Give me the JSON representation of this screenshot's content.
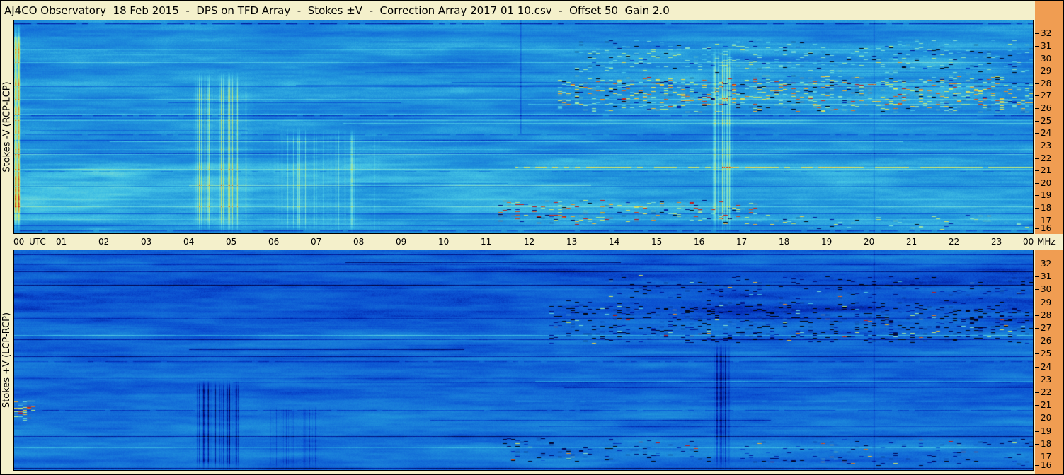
{
  "header": {
    "title": "AJ4CO Observatory  18 Feb 2015  -  DPS on TFD Array  -  Stokes ±V  -  Correction Array 2017 01 10.csv  -  Offset 50  Gain 2.0"
  },
  "colors": {
    "page_bg": "#f4f0cb",
    "strip_bg": "#f09d52",
    "text": "#000000",
    "panel_border": "#000000"
  },
  "palette": [
    {
      "t": 0.0,
      "c": "#000008"
    },
    {
      "t": 0.06,
      "c": "#00004a"
    },
    {
      "t": 0.15,
      "c": "#0018a0"
    },
    {
      "t": 0.24,
      "c": "#0a4ed0"
    },
    {
      "t": 0.32,
      "c": "#1470d8"
    },
    {
      "t": 0.42,
      "c": "#2196dc"
    },
    {
      "t": 0.52,
      "c": "#44c3e4"
    },
    {
      "t": 0.62,
      "c": "#7fdfd4"
    },
    {
      "t": 0.72,
      "c": "#b4ed86"
    },
    {
      "t": 0.82,
      "c": "#eee34e"
    },
    {
      "t": 0.9,
      "c": "#ec8a1e"
    },
    {
      "t": 1.0,
      "c": "#c41414"
    }
  ],
  "time_axis": {
    "unit_left": "UTC",
    "unit_right": "MHz",
    "hours": [
      "00",
      "01",
      "02",
      "03",
      "04",
      "05",
      "06",
      "07",
      "08",
      "09",
      "10",
      "11",
      "12",
      "13",
      "14",
      "15",
      "16",
      "17",
      "18",
      "19",
      "20",
      "21",
      "22",
      "23",
      "00"
    ]
  },
  "freq_axis": {
    "min_mhz": 16,
    "max_mhz": 32,
    "ticks": [
      "32",
      "31",
      "30",
      "29",
      "28",
      "27",
      "26",
      "25",
      "24",
      "23",
      "22",
      "21",
      "20",
      "19",
      "18",
      "17",
      "16"
    ]
  },
  "panels": [
    {
      "id": "stokes-minus-v",
      "label": "Stokes -V (RCP-LCP)",
      "base_level": 0.42,
      "seed": 11,
      "line_density": 0.14,
      "line_amp": 0.16,
      "features": [
        {
          "kind": "bright_patch",
          "t0": -0.5,
          "t1": 3.3,
          "f0": 15.9,
          "f1": 22.5,
          "amp": 0.09
        },
        {
          "kind": "bright_patch",
          "t0": 2.5,
          "t1": 6.2,
          "f0": 15.9,
          "f1": 20.2,
          "amp": 0.05
        },
        {
          "kind": "bright_patch",
          "t0": 12.8,
          "t1": 24.5,
          "f0": 24.5,
          "f1": 32.0,
          "amp": 0.05
        },
        {
          "kind": "vstreaks",
          "t0": 0.0,
          "t1": 0.14,
          "f0": 15.9,
          "f1": 33.1,
          "amp": 0.3,
          "density": 0.85
        },
        {
          "kind": "vstreaks",
          "t0": 4.2,
          "t1": 5.6,
          "f0": 15.9,
          "f1": 29.0,
          "amp": 0.22,
          "density": 0.25
        },
        {
          "kind": "vstreaks",
          "t0": 6.1,
          "t1": 8.6,
          "f0": 15.9,
          "f1": 24.5,
          "amp": 0.11,
          "density": 0.22
        },
        {
          "kind": "vstreaks",
          "t0": 16.45,
          "t1": 16.95,
          "f0": 15.9,
          "f1": 31.0,
          "amp": 0.15,
          "density": 0.5
        },
        {
          "kind": "speckle",
          "t0": 12.8,
          "t1": 24.0,
          "f0": 25.7,
          "f1": 28.7,
          "amp": 0.38,
          "density": 0.12,
          "dark_mix": 0.25
        },
        {
          "kind": "speckle",
          "t0": 13.2,
          "t1": 24.0,
          "f0": 28.8,
          "f1": 31.6,
          "amp": 0.2,
          "density": 0.06,
          "dark_mix": 0.4
        },
        {
          "kind": "speckle",
          "t0": 11.4,
          "t1": 17.5,
          "f0": 16.6,
          "f1": 18.7,
          "amp": 0.42,
          "density": 0.07,
          "dark_mix": 0.35
        },
        {
          "kind": "speckle",
          "t0": 17.5,
          "t1": 24.0,
          "f0": 16.2,
          "f1": 17.4,
          "amp": 0.3,
          "density": 0.035,
          "dark_mix": 0.3
        },
        {
          "kind": "hline",
          "t0": 11.8,
          "t1": 24.0,
          "f": 21.25,
          "amp": 0.34
        },
        {
          "kind": "hline",
          "t0": 0.0,
          "t1": 24.0,
          "f": 20.95,
          "amp": 0.1
        },
        {
          "kind": "hline",
          "t0": 0.0,
          "t1": 24.0,
          "f": 32.85,
          "amp": -0.22
        },
        {
          "kind": "hline",
          "t0": 0.0,
          "t1": 24.0,
          "f": 25.45,
          "amp": -0.16
        },
        {
          "kind": "hline",
          "t0": 0.0,
          "t1": 24.0,
          "f": 23.9,
          "amp": -0.12
        },
        {
          "kind": "hline",
          "t0": 0.0,
          "t1": 24.0,
          "f": 16.15,
          "amp": -0.18
        },
        {
          "kind": "vline",
          "t": 11.93,
          "f0": 24.0,
          "f1": 33.1,
          "amp": -0.1
        },
        {
          "kind": "vline",
          "t": 20.25,
          "f0": 15.9,
          "f1": 33.1,
          "amp": -0.08
        }
      ]
    },
    {
      "id": "stokes-plus-v",
      "label": "Stokes +V (LCP-RCP)",
      "base_level": 0.3,
      "seed": 22,
      "line_density": 0.12,
      "line_amp": 0.2,
      "features": [
        {
          "kind": "bright_patch",
          "t0": 2.0,
          "t1": 6.5,
          "f0": 17.0,
          "f1": 22.5,
          "amp": 0.04
        },
        {
          "kind": "speckle",
          "t0": 0.0,
          "t1": 0.5,
          "f0": 19.5,
          "f1": 21.5,
          "amp": 0.5,
          "density": 0.15,
          "bright_mix": 0.2
        },
        {
          "kind": "vstreaks",
          "t0": 4.3,
          "t1": 5.3,
          "f0": 15.9,
          "f1": 23.0,
          "amp": -0.16,
          "density": 0.3
        },
        {
          "kind": "vstreaks",
          "t0": 6.0,
          "t1": 7.3,
          "f0": 15.9,
          "f1": 21.0,
          "amp": -0.07,
          "density": 0.2
        },
        {
          "kind": "vstreaks",
          "t0": 16.5,
          "t1": 16.85,
          "f0": 15.9,
          "f1": 26.0,
          "amp": -0.1,
          "density": 0.5
        },
        {
          "kind": "speckle",
          "t0": 12.6,
          "t1": 24.0,
          "f0": 25.8,
          "f1": 29.2,
          "amp": -0.3,
          "density": 0.1,
          "bright_mix": 0.12
        },
        {
          "kind": "speckle",
          "t0": 14.0,
          "t1": 24.0,
          "f0": 29.3,
          "f1": 31.2,
          "amp": -0.22,
          "density": 0.05,
          "bright_mix": 0.1
        },
        {
          "kind": "speckle",
          "t0": 11.5,
          "t1": 16.5,
          "f0": 16.6,
          "f1": 18.6,
          "amp": -0.3,
          "density": 0.06,
          "bright_mix": 0.15
        },
        {
          "kind": "speckle",
          "t0": 17.0,
          "t1": 24.0,
          "f0": 16.2,
          "f1": 18.4,
          "amp": -0.22,
          "density": 0.04,
          "bright_mix": 0.2
        },
        {
          "kind": "hline",
          "t0": 0.0,
          "t1": 24.0,
          "f": 20.6,
          "amp": -0.12
        },
        {
          "kind": "hline",
          "t0": 0.0,
          "t1": 24.0,
          "f": 24.4,
          "amp": -0.1
        },
        {
          "kind": "hline",
          "t0": 11.8,
          "t1": 24.0,
          "f": 21.3,
          "amp": 0.12
        },
        {
          "kind": "vline",
          "t": 20.25,
          "f0": 15.9,
          "f1": 33.1,
          "amp": -0.08
        }
      ]
    }
  ],
  "chart_data": {
    "type": "heatmap",
    "title": "AJ4CO Observatory  18 Feb 2015  -  DPS on TFD Array  -  Stokes ±V  -  Correction Array 2017 01 10.csv  -  Offset 50  Gain 2.0",
    "x_axis": {
      "label": "UTC",
      "min_hours": 0,
      "max_hours": 24,
      "tick_step_hours": 1
    },
    "y_axis": {
      "label": "MHz",
      "min_mhz": 16,
      "max_mhz": 32,
      "tick_step_mhz": 1
    },
    "panels": [
      "Stokes -V (RCP-LCP)",
      "Stokes +V (LCP-RCP)"
    ],
    "legend_position": "none",
    "grid": false,
    "annotations": [
      "Broadband vertical striping 04:20-05:30 UTC (bright in -V panel, dark in +V panel)",
      "Dense narrowband RFI speckle 13:00-24:00 UTC between ~26-28.5 MHz in both panels",
      "Narrow interference line near 21.2 MHz from ~12:00 UTC to end of day",
      "Speckled interference 11:30-17:30 UTC near 17-18.5 MHz",
      "Bright vertical event near 16:40 UTC spanning most of the band",
      "Many thin horizontal RFI carrier lines across both panels",
      "Brighter diffuse background 00:00-03:00 UTC below ~22 MHz in the -V panel"
    ]
  }
}
